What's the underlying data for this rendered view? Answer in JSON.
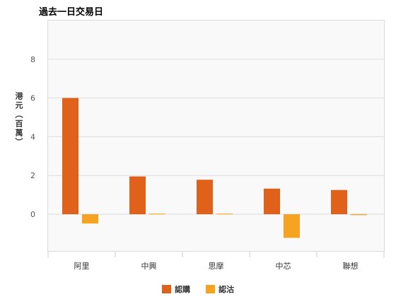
{
  "chart_data": {
    "type": "bar",
    "title": "過去一日交易日",
    "ylabel": "港元（百萬）",
    "xlabel": "",
    "categories": [
      "阿里",
      "中興",
      "思摩",
      "中芯",
      "聯想"
    ],
    "series": [
      {
        "name": "認購",
        "color": "#e0611a",
        "values": [
          6.0,
          1.95,
          1.78,
          1.32,
          1.25
        ]
      },
      {
        "name": "認沽",
        "color": "#f5a320",
        "values": [
          -0.48,
          0.03,
          0.03,
          -1.22,
          -0.05
        ]
      }
    ],
    "yticks": [
      0,
      2,
      4,
      6,
      8
    ],
    "ylim": [
      -2,
      10
    ],
    "grid": true,
    "legend": "bottom"
  }
}
